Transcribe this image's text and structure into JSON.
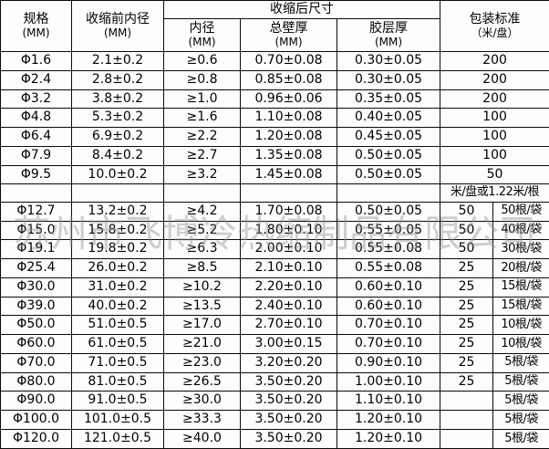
{
  "colors": {
    "border": "#0a0a0a",
    "background": "#fcfcfc",
    "watermark_gray": "#8f8f8f"
  },
  "watermark": {
    "text": "苏州市飞博冷热缩制品有限公司"
  },
  "table": {
    "headers": {
      "spec": {
        "title": "规格",
        "unit": "(MM)"
      },
      "pre_shrink_id": {
        "title": "收缩前内径",
        "unit": "(MM)"
      },
      "post_shrink_group": "收缩后尺寸",
      "inner_diameter": {
        "title": "内径",
        "unit": "(MM)"
      },
      "total_wall": {
        "title": "总壁厚",
        "unit": "(MM)"
      },
      "adhesive_layer": {
        "title": "胶层厚",
        "unit": "(MM)"
      },
      "packaging": {
        "title": "包装标准",
        "unit": "（米/盘）"
      }
    },
    "rows": [
      {
        "type": "single",
        "cells": [
          "Φ1.6",
          "2.1±0.2",
          "≥0.6",
          "0.70±0.08",
          "0.30±0.05",
          "200"
        ]
      },
      {
        "type": "single",
        "cells": [
          "Φ2.4",
          "2.8±0.2",
          "≥0.8",
          "0.85±0.08",
          "0.30±0.05",
          "200"
        ]
      },
      {
        "type": "single",
        "cells": [
          "Φ3.2",
          "3.8±0.2",
          "≥1.0",
          "0.96±0.06",
          "0.35±0.05",
          "200"
        ]
      },
      {
        "type": "single",
        "cells": [
          "Φ4.8",
          "5.3±0.2",
          "≥1.6",
          "1.10±0.08",
          "0.40±0.05",
          "100"
        ]
      },
      {
        "type": "single",
        "cells": [
          "Φ6.4",
          "6.9±0.2",
          "≥2.2",
          "1.20±0.08",
          "0.45±0.05",
          "100"
        ]
      },
      {
        "type": "single",
        "cells": [
          "Φ7.9",
          "8.4±0.2",
          "≥2.7",
          "1.35±0.08",
          "0.50±0.05",
          "100"
        ]
      },
      {
        "type": "single",
        "cells": [
          "Φ9.5",
          "10.0±0.2",
          "≥3.2",
          "1.45±0.08",
          "0.50±0.05",
          "50"
        ]
      },
      {
        "type": "note",
        "note": "米/盘或1.22米/根"
      },
      {
        "type": "split",
        "cells": [
          "Φ12.7",
          "13.2±0.2",
          "≥4.2",
          "1.70±0.08",
          "0.50±0.05",
          "50",
          "50根/袋"
        ]
      },
      {
        "type": "split",
        "cells": [
          "Φ15.0",
          "15.8±0.2",
          "≥5.2",
          "1.80±0.10",
          "0.55±0.05",
          "50",
          "40根/袋"
        ]
      },
      {
        "type": "split",
        "cells": [
          "Φ19.1",
          "19.8±0.2",
          "≥6.3",
          "2.00±0.10",
          "0.55±0.08",
          "50",
          "30根/袋"
        ]
      },
      {
        "type": "split",
        "cells": [
          "Φ25.4",
          "26.0±0.2",
          "≥8.5",
          "2.10±0.10",
          "0.55±0.08",
          "25",
          "20根/袋"
        ]
      },
      {
        "type": "split",
        "cells": [
          "Φ30.0",
          "31.0±0.2",
          "≥10.2",
          "2.20±0.10",
          "0.60±0.10",
          "25",
          "15根/袋"
        ]
      },
      {
        "type": "split",
        "cells": [
          "Φ39.0",
          "40.0±0.2",
          "≥13.5",
          "2.40±0.10",
          "0.60±0.10",
          "25",
          "15根/袋"
        ]
      },
      {
        "type": "split",
        "cells": [
          "Φ50.0",
          "51.0±0.5",
          "≥17.0",
          "2.70±0.10",
          "0.70±0.10",
          "25",
          "10根/袋"
        ]
      },
      {
        "type": "split",
        "cells": [
          "Φ60.0",
          "61.0±0.5",
          "≥21.0",
          "3.00±0.15",
          "0.70±0.10",
          "25",
          "10根/袋"
        ]
      },
      {
        "type": "split",
        "cells": [
          "Φ70.0",
          "71.0±0.5",
          "≥23.0",
          "3.20±0.20",
          "0.90±0.10",
          "25",
          "5根/袋"
        ]
      },
      {
        "type": "split",
        "cells": [
          "Φ80.0",
          "81.0±0.5",
          "≥26.5",
          "3.50±0.20",
          "1.00±0.10",
          "25",
          "5根/袋"
        ]
      },
      {
        "type": "split",
        "cells": [
          "Φ90.0",
          "91.0±0.5",
          "≥30.0",
          "3.50±0.20",
          "1.10±0.10",
          "",
          "5根/袋"
        ]
      },
      {
        "type": "split",
        "cells": [
          "Φ100.0",
          "101.0±0.5",
          "≥33.3",
          "3.50±0.20",
          "1.20±0.10",
          "",
          "5根/袋"
        ]
      },
      {
        "type": "split",
        "cells": [
          "Φ120.0",
          "121.0±0.5",
          "≥40.0",
          "3.50±0.20",
          "1.20±0.10",
          "",
          "5根/袋"
        ]
      }
    ]
  }
}
